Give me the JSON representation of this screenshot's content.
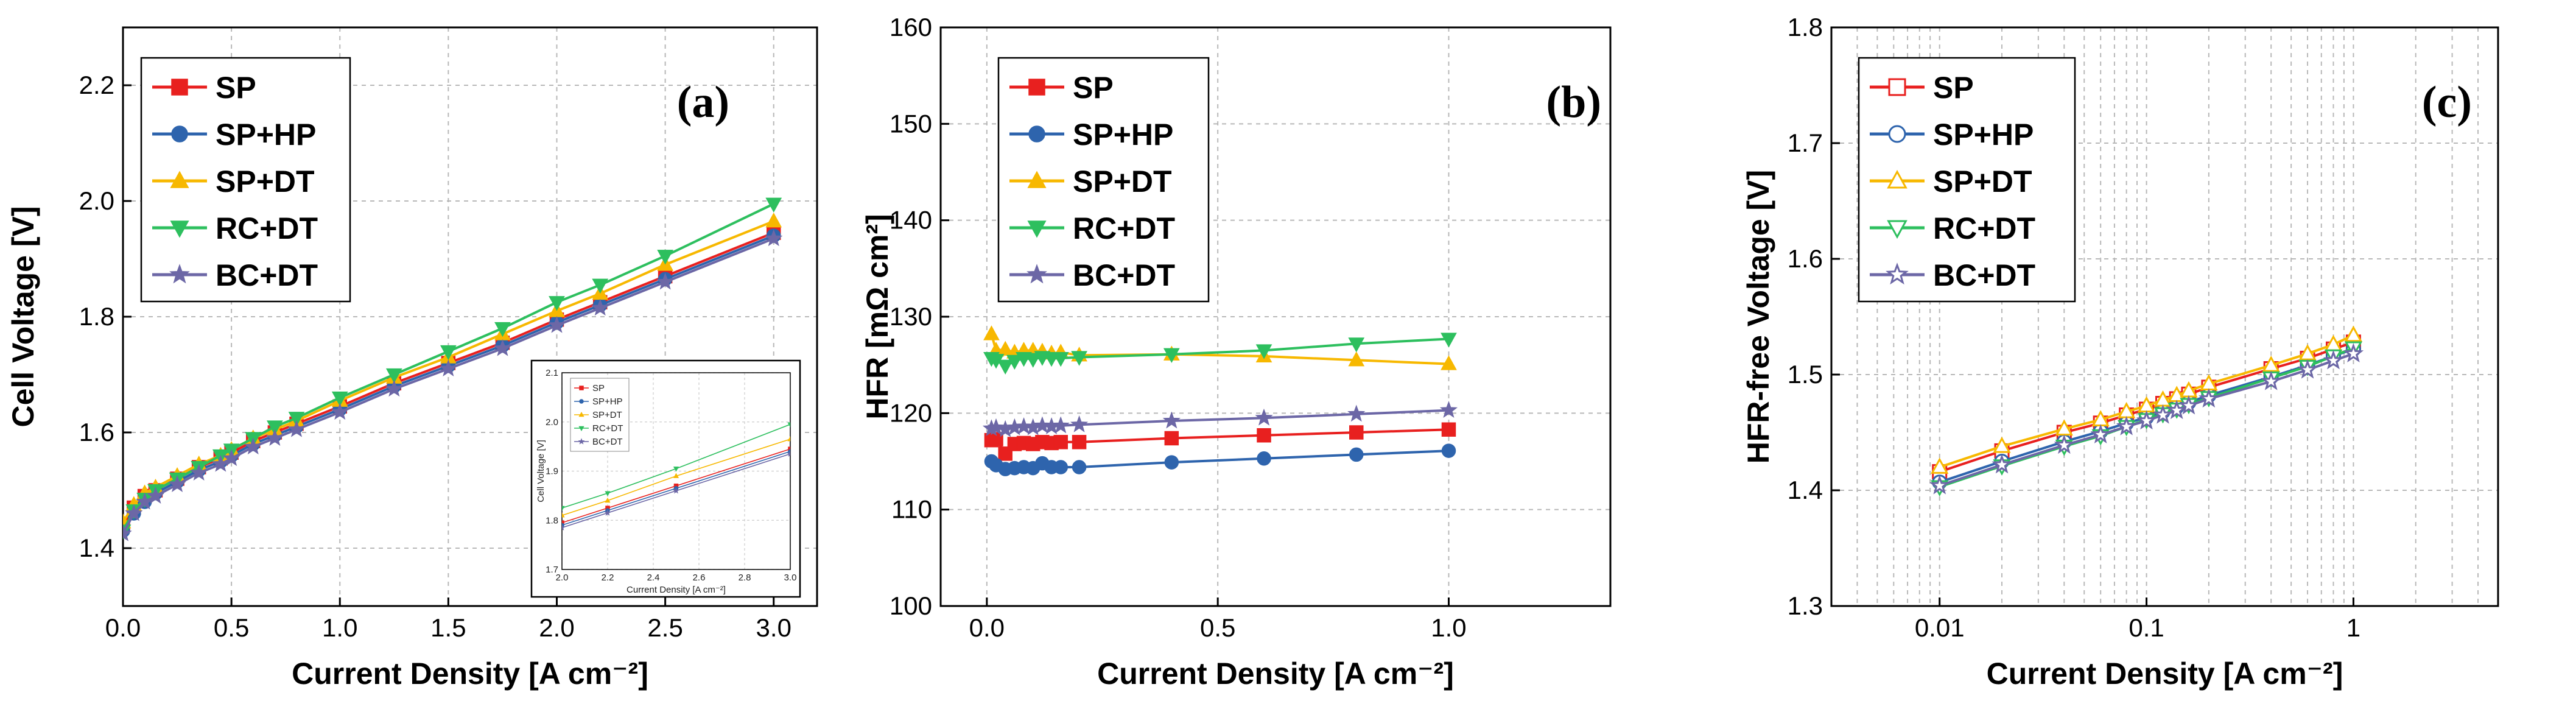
{
  "figure": {
    "panel_count": 3
  },
  "chart_data": [
    {
      "type": "line",
      "panel_tag": "(a)",
      "xlabel": "Current Density [A cm⁻²]",
      "ylabel": "Cell Voltage [V]",
      "xlim": [
        0,
        3.2
      ],
      "ylim": [
        1.3,
        2.3
      ],
      "x_ticks": [
        0.0,
        0.5,
        1.0,
        1.5,
        2.0,
        2.5,
        3.0
      ],
      "x_tick_labels": [
        "0.0",
        "0.5",
        "1.0",
        "1.5",
        "2.0",
        "2.5",
        "3.0"
      ],
      "y_ticks": [
        1.4,
        1.6,
        1.8,
        2.0,
        2.2
      ],
      "y_tick_labels": [
        "1.4",
        "1.6",
        "1.8",
        "2.0",
        "2.2"
      ],
      "legend_position": "top-left",
      "x": [
        0.0,
        0.05,
        0.1,
        0.15,
        0.25,
        0.35,
        0.45,
        0.5,
        0.6,
        0.7,
        0.8,
        1.0,
        1.25,
        1.5,
        1.75,
        2.0,
        2.2,
        2.5,
        3.0
      ],
      "series": [
        {
          "name": "SP",
          "color": "#e8201f",
          "marker": "square",
          "values": [
            1.44,
            1.47,
            1.49,
            1.5,
            1.52,
            1.54,
            1.555,
            1.565,
            1.585,
            1.6,
            1.615,
            1.645,
            1.685,
            1.72,
            1.755,
            1.795,
            1.825,
            1.87,
            1.945
          ]
        },
        {
          "name": "SP+HP",
          "color": "#2e64ad",
          "marker": "circle",
          "values": [
            1.43,
            1.46,
            1.48,
            1.495,
            1.515,
            1.535,
            1.55,
            1.56,
            1.58,
            1.595,
            1.61,
            1.64,
            1.68,
            1.715,
            1.75,
            1.79,
            1.82,
            1.865,
            1.94
          ]
        },
        {
          "name": "SP+DT",
          "color": "#f7b800",
          "marker": "triangle-up",
          "values": [
            1.445,
            1.475,
            1.495,
            1.505,
            1.525,
            1.545,
            1.56,
            1.57,
            1.59,
            1.605,
            1.62,
            1.655,
            1.695,
            1.73,
            1.77,
            1.81,
            1.84,
            1.89,
            1.965
          ]
        },
        {
          "name": "RC+DT",
          "color": "#2dbf5e",
          "marker": "triangle-down",
          "values": [
            1.43,
            1.465,
            1.485,
            1.5,
            1.52,
            1.54,
            1.56,
            1.57,
            1.59,
            1.61,
            1.625,
            1.66,
            1.7,
            1.74,
            1.78,
            1.825,
            1.855,
            1.905,
            1.995
          ]
        },
        {
          "name": "BC+DT",
          "color": "#6c67a6",
          "marker": "star",
          "values": [
            1.425,
            1.46,
            1.48,
            1.49,
            1.51,
            1.53,
            1.545,
            1.555,
            1.575,
            1.59,
            1.605,
            1.635,
            1.675,
            1.71,
            1.745,
            1.785,
            1.815,
            1.86,
            1.935
          ]
        }
      ],
      "inset": {
        "xlabel": "Current Density [A cm⁻²]",
        "ylabel": "Cell Voltage [V]",
        "xlim": [
          2.0,
          3.0
        ],
        "ylim": [
          1.7,
          2.1
        ],
        "x_tick_labels": [
          "2.0",
          "2.2",
          "2.4",
          "2.6",
          "2.8",
          "3.0"
        ],
        "y_tick_labels": [
          "1.7",
          "1.8",
          "1.9",
          "2.0",
          "2.1"
        ],
        "legend": [
          "SP",
          "SP+HP",
          "SP+DT",
          "RC+DT",
          "BC+DT"
        ]
      }
    },
    {
      "type": "line",
      "panel_tag": "(b)",
      "xlabel": "Current Density [A cm⁻²]",
      "ylabel": "HFR [mΩ cm²]",
      "xlim": [
        -0.1,
        1.35
      ],
      "ylim": [
        100,
        160
      ],
      "x_ticks": [
        0.0,
        0.5,
        1.0
      ],
      "x_tick_labels": [
        "0.0",
        "0.5",
        "1.0"
      ],
      "y_ticks": [
        100,
        110,
        120,
        130,
        140,
        150,
        160
      ],
      "y_tick_labels": [
        "100",
        "110",
        "120",
        "130",
        "140",
        "150",
        "160"
      ],
      "legend_position": "top-left",
      "x": [
        0.01,
        0.02,
        0.04,
        0.06,
        0.08,
        0.1,
        0.12,
        0.14,
        0.16,
        0.2,
        0.4,
        0.6,
        0.8,
        1.0
      ],
      "series": [
        {
          "name": "SP",
          "color": "#e8201f",
          "marker": "square",
          "values": [
            117.2,
            117.3,
            115.8,
            116.8,
            116.9,
            116.8,
            117.0,
            116.9,
            117.0,
            117.0,
            117.4,
            117.7,
            118.0,
            118.3
          ]
        },
        {
          "name": "SP+HP",
          "color": "#2e64ad",
          "marker": "circle",
          "values": [
            115.0,
            114.6,
            114.2,
            114.3,
            114.4,
            114.3,
            114.8,
            114.4,
            114.4,
            114.4,
            114.9,
            115.3,
            115.7,
            116.1
          ]
        },
        {
          "name": "SP+DT",
          "color": "#f7b800",
          "marker": "triangle-up",
          "values": [
            128.2,
            126.5,
            126.6,
            126.3,
            126.5,
            126.5,
            126.4,
            126.2,
            126.3,
            126.0,
            126.1,
            125.9,
            125.5,
            125.1
          ]
        },
        {
          "name": "RC+DT",
          "color": "#2dbf5e",
          "marker": "triangle-down",
          "values": [
            125.7,
            125.5,
            124.9,
            125.4,
            125.7,
            125.6,
            125.8,
            125.7,
            125.7,
            125.8,
            126.1,
            126.5,
            127.2,
            127.7
          ]
        },
        {
          "name": "BC+DT",
          "color": "#6c67a6",
          "marker": "star",
          "values": [
            118.4,
            118.5,
            118.3,
            118.5,
            118.6,
            118.5,
            118.7,
            118.6,
            118.7,
            118.8,
            119.2,
            119.5,
            119.9,
            120.3
          ]
        }
      ]
    },
    {
      "type": "line",
      "panel_tag": "(c)",
      "x_scale": "log",
      "xlabel": "Current Density [A cm⁻²]",
      "ylabel": "HFR-free Voltage [V]",
      "xlim": [
        0.003,
        5
      ],
      "ylim": [
        1.3,
        1.8
      ],
      "x_ticks": [
        0.01,
        0.1,
        1
      ],
      "x_tick_labels": [
        "0.01",
        "0.1",
        "1"
      ],
      "y_ticks": [
        1.3,
        1.4,
        1.5,
        1.6,
        1.7,
        1.8
      ],
      "y_tick_labels": [
        "1.3",
        "1.4",
        "1.5",
        "1.6",
        "1.7",
        "1.8"
      ],
      "legend_position": "top-left",
      "x": [
        0.01,
        0.02,
        0.04,
        0.06,
        0.08,
        0.1,
        0.12,
        0.14,
        0.16,
        0.2,
        0.4,
        0.6,
        0.8,
        1.0
      ],
      "series": [
        {
          "name": "SP",
          "color": "#e8201f",
          "marker": "open-square",
          "values": [
            1.416,
            1.434,
            1.45,
            1.458,
            1.465,
            1.47,
            1.475,
            1.479,
            1.483,
            1.489,
            1.505,
            1.514,
            1.522,
            1.528
          ]
        },
        {
          "name": "SP+HP",
          "color": "#2e64ad",
          "marker": "open-circle",
          "values": [
            1.407,
            1.425,
            1.442,
            1.451,
            1.458,
            1.463,
            1.468,
            1.472,
            1.476,
            1.482,
            1.498,
            1.508,
            1.516,
            1.522
          ]
        },
        {
          "name": "SP+DT",
          "color": "#f7b800",
          "marker": "open-triangle-up",
          "values": [
            1.42,
            1.438,
            1.453,
            1.461,
            1.468,
            1.473,
            1.478,
            1.482,
            1.486,
            1.492,
            1.508,
            1.518,
            1.526,
            1.534
          ]
        },
        {
          "name": "RC+DT",
          "color": "#2dbf5e",
          "marker": "open-triangle-down",
          "values": [
            1.403,
            1.421,
            1.438,
            1.447,
            1.455,
            1.461,
            1.466,
            1.47,
            1.474,
            1.48,
            1.497,
            1.507,
            1.516,
            1.523
          ]
        },
        {
          "name": "BC+DT",
          "color": "#6c67a6",
          "marker": "open-star",
          "values": [
            1.404,
            1.422,
            1.439,
            1.448,
            1.455,
            1.46,
            1.465,
            1.469,
            1.473,
            1.479,
            1.494,
            1.504,
            1.512,
            1.518
          ]
        }
      ]
    }
  ]
}
